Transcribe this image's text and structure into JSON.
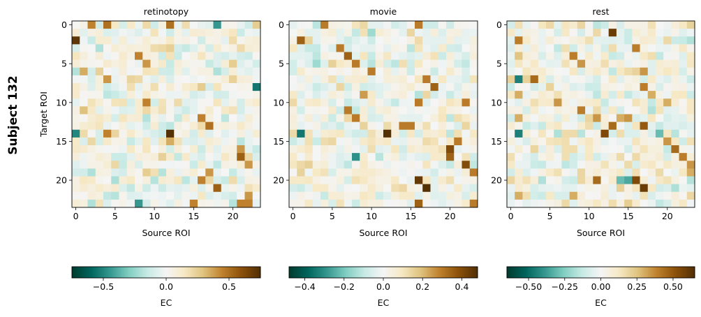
{
  "figure": {
    "row_label": "Subject 132"
  },
  "chart_data": [
    {
      "type": "heatmap",
      "title": "retinotopy",
      "xlabel": "Source ROI",
      "ylabel": "Target ROI",
      "size": 24,
      "x_ticks": [
        0,
        5,
        10,
        15,
        20
      ],
      "y_ticks": [
        0,
        5,
        10,
        15,
        20
      ],
      "colormap": "BrBG_r",
      "vmin": -0.75,
      "vmax": 0.75,
      "colorbar": {
        "label": "EC",
        "ticks": [
          -0.5,
          0.0,
          0.5
        ],
        "tick_labels": [
          "−0.5",
          "0.0",
          "0.5"
        ]
      },
      "strong_entries": [
        [
          0,
          2,
          0.45
        ],
        [
          0,
          4,
          0.5
        ],
        [
          0,
          12,
          0.5
        ],
        [
          0,
          18,
          -0.45
        ],
        [
          2,
          0,
          0.72
        ],
        [
          4,
          8,
          0.45
        ],
        [
          5,
          9,
          0.4
        ],
        [
          6,
          1,
          0.35
        ],
        [
          7,
          4,
          0.4
        ],
        [
          8,
          23,
          -0.55
        ],
        [
          10,
          9,
          0.45
        ],
        [
          11,
          1,
          0.3
        ],
        [
          12,
          16,
          0.45
        ],
        [
          13,
          17,
          0.5
        ],
        [
          14,
          0,
          -0.5
        ],
        [
          14,
          4,
          0.45
        ],
        [
          14,
          12,
          0.75
        ],
        [
          15,
          12,
          0.35
        ],
        [
          16,
          21,
          0.4
        ],
        [
          17,
          21,
          0.55
        ],
        [
          18,
          22,
          0.4
        ],
        [
          19,
          17,
          0.4
        ],
        [
          20,
          16,
          0.45
        ],
        [
          21,
          18,
          0.55
        ],
        [
          22,
          22,
          0.4
        ],
        [
          23,
          8,
          -0.45
        ],
        [
          23,
          15,
          0.45
        ],
        [
          23,
          21,
          0.45
        ],
        [
          23,
          22,
          0.45
        ],
        [
          23,
          2,
          -0.2
        ],
        [
          3,
          3,
          -0.2
        ],
        [
          19,
          2,
          -0.2
        ],
        [
          5,
          17,
          -0.15
        ]
      ]
    },
    {
      "type": "heatmap",
      "title": "movie",
      "xlabel": "Source ROI",
      "ylabel": "",
      "size": 24,
      "x_ticks": [
        0,
        5,
        10,
        15,
        20
      ],
      "y_ticks": [
        0,
        5,
        10,
        15,
        20
      ],
      "colormap": "BrBG_r",
      "vmin": -0.48,
      "vmax": 0.48,
      "colorbar": {
        "label": "EC",
        "ticks": [
          -0.4,
          -0.2,
          0.0,
          0.2,
          0.4
        ],
        "tick_labels": [
          "−0.4",
          "−0.2",
          "0.0",
          "0.2",
          "0.4"
        ]
      },
      "strong_entries": [
        [
          0,
          4,
          0.3
        ],
        [
          0,
          16,
          0.3
        ],
        [
          2,
          1,
          0.35
        ],
        [
          3,
          6,
          0.3
        ],
        [
          4,
          7,
          0.35
        ],
        [
          5,
          8,
          0.3
        ],
        [
          6,
          10,
          0.3
        ],
        [
          7,
          17,
          0.3
        ],
        [
          8,
          18,
          0.35
        ],
        [
          9,
          9,
          0.25
        ],
        [
          10,
          16,
          0.3
        ],
        [
          10,
          22,
          0.3
        ],
        [
          11,
          7,
          0.3
        ],
        [
          12,
          8,
          0.3
        ],
        [
          13,
          14,
          0.3
        ],
        [
          13,
          15,
          0.3
        ],
        [
          14,
          1,
          -0.35
        ],
        [
          14,
          12,
          0.48
        ],
        [
          15,
          21,
          0.3
        ],
        [
          16,
          20,
          0.4
        ],
        [
          17,
          8,
          -0.3
        ],
        [
          17,
          20,
          0.35
        ],
        [
          18,
          22,
          0.4
        ],
        [
          19,
          23,
          0.3
        ],
        [
          20,
          16,
          0.45
        ],
        [
          21,
          17,
          0.48
        ],
        [
          23,
          16,
          0.35
        ],
        [
          23,
          23,
          0.3
        ],
        [
          1,
          10,
          -0.15
        ],
        [
          5,
          3,
          -0.15
        ]
      ]
    },
    {
      "type": "heatmap",
      "title": "rest",
      "xlabel": "Source ROI",
      "ylabel": "",
      "size": 24,
      "x_ticks": [
        0,
        5,
        10,
        15,
        20
      ],
      "y_ticks": [
        0,
        5,
        10,
        15,
        20
      ],
      "colormap": "BrBG_r",
      "vmin": -0.65,
      "vmax": 0.65,
      "colorbar": {
        "label": "EC",
        "ticks": [
          -0.5,
          -0.25,
          0.0,
          0.25,
          0.5
        ],
        "tick_labels": [
          "−0.50",
          "−0.25",
          "0.00",
          "0.25",
          "0.50"
        ]
      },
      "strong_entries": [
        [
          1,
          13,
          0.6
        ],
        [
          2,
          1,
          0.4
        ],
        [
          3,
          16,
          0.4
        ],
        [
          4,
          8,
          0.4
        ],
        [
          5,
          9,
          0.35
        ],
        [
          6,
          17,
          0.35
        ],
        [
          7,
          1,
          -0.45
        ],
        [
          7,
          3,
          0.45
        ],
        [
          8,
          17,
          0.4
        ],
        [
          9,
          18,
          0.3
        ],
        [
          10,
          6,
          0.35
        ],
        [
          10,
          20,
          0.3
        ],
        [
          11,
          9,
          0.4
        ],
        [
          12,
          11,
          0.35
        ],
        [
          12,
          14,
          0.3
        ],
        [
          12,
          15,
          0.35
        ],
        [
          13,
          13,
          0.45
        ],
        [
          13,
          17,
          0.5
        ],
        [
          14,
          1,
          -0.45
        ],
        [
          14,
          12,
          0.55
        ],
        [
          14,
          19,
          -0.3
        ],
        [
          15,
          20,
          0.35
        ],
        [
          16,
          21,
          0.45
        ],
        [
          17,
          22,
          0.4
        ],
        [
          18,
          23,
          0.35
        ],
        [
          19,
          23,
          0.3
        ],
        [
          20,
          11,
          0.45
        ],
        [
          20,
          14,
          -0.3
        ],
        [
          20,
          15,
          -0.35
        ],
        [
          20,
          16,
          0.55
        ],
        [
          21,
          17,
          0.6
        ],
        [
          22,
          1,
          0.3
        ],
        [
          22,
          8,
          0.3
        ],
        [
          4,
          1,
          0.25
        ],
        [
          9,
          1,
          0.3
        ],
        [
          12,
          1,
          0.3
        ]
      ]
    }
  ]
}
